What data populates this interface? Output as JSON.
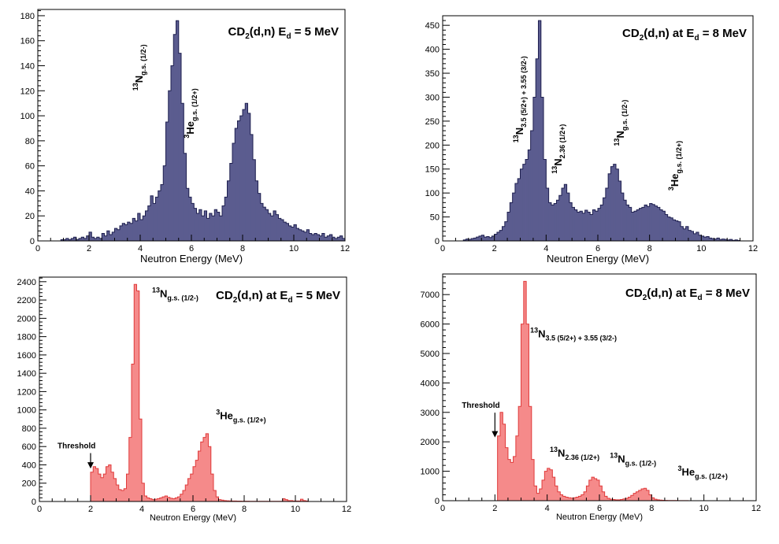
{
  "chart_data": [
    {
      "id": "tl",
      "type": "bar",
      "style": "histogram",
      "title": "CD2(d,n) E_d = 5 MeV",
      "title_parts": [
        "CD",
        "2",
        "(d,n) E",
        "d",
        " = 5 MeV"
      ],
      "xlabel": "Neutron Energy (MeV)",
      "ylabel": "",
      "xlim": [
        0,
        12
      ],
      "ylim": [
        0,
        185
      ],
      "xticks": [
        0,
        2,
        4,
        6,
        8,
        10,
        12
      ],
      "yticks": [
        0,
        20,
        40,
        60,
        80,
        100,
        120,
        140,
        160,
        180
      ],
      "fill_color": "#5b5c8f",
      "line_color": "#1f2050",
      "bin_start": 0.9,
      "bin_width": 0.1,
      "values": [
        1,
        1,
        2,
        1,
        2,
        3,
        1,
        2,
        3,
        2,
        4,
        7,
        3,
        2,
        3,
        2,
        6,
        4,
        8,
        5,
        7,
        10,
        9,
        12,
        14,
        13,
        15,
        14,
        18,
        16,
        22,
        17,
        20,
        24,
        28,
        36,
        30,
        35,
        40,
        45,
        60,
        95,
        120,
        140,
        165,
        176,
        150,
        110,
        70,
        42,
        35,
        30,
        26,
        22,
        25,
        20,
        24,
        18,
        22,
        20,
        25,
        23,
        20,
        28,
        35,
        48,
        62,
        78,
        90,
        96,
        100,
        105,
        110,
        102,
        85,
        65,
        48,
        38,
        30,
        27,
        25,
        22,
        20,
        24,
        21,
        18,
        17,
        15,
        14,
        12,
        11,
        13,
        10,
        9,
        8,
        7,
        9,
        6,
        5,
        6,
        5,
        4,
        6,
        3,
        4,
        5,
        3,
        2,
        3,
        4,
        2
      ],
      "annotations": [
        {
          "text_parts": [
            "13",
            "N",
            "g.s. (1/2-)"
          ],
          "x": 4.1,
          "y": 120,
          "rotation": -90
        },
        {
          "text_parts": [
            "3",
            "He",
            "g.s. (1/2+)"
          ],
          "x": 6.1,
          "y": 82,
          "rotation": -90
        }
      ]
    },
    {
      "id": "tr",
      "type": "bar",
      "style": "histogram",
      "title": "CD2(d,n) at E_d = 8 MeV",
      "title_parts": [
        "CD",
        "2",
        "(d,n) at E",
        "d",
        " = 8 MeV"
      ],
      "xlabel": "Neutron Energy (MeV)",
      "ylabel": "",
      "xlim": [
        0,
        12
      ],
      "ylim": [
        0,
        470
      ],
      "xticks": [
        0,
        2,
        4,
        6,
        8,
        10,
        12
      ],
      "yticks": [
        0,
        50,
        100,
        150,
        200,
        250,
        300,
        350,
        400,
        450
      ],
      "fill_color": "#5b5c8f",
      "line_color": "#1f2050",
      "bin_start": 0.8,
      "bin_width": 0.1,
      "values": [
        2,
        4,
        3,
        5,
        6,
        8,
        10,
        12,
        8,
        9,
        7,
        10,
        14,
        18,
        22,
        30,
        40,
        60,
        80,
        100,
        120,
        130,
        150,
        160,
        170,
        190,
        230,
        300,
        380,
        460,
        300,
        170,
        110,
        80,
        75,
        78,
        85,
        95,
        110,
        118,
        100,
        80,
        70,
        65,
        60,
        62,
        58,
        64,
        60,
        55,
        65,
        62,
        68,
        75,
        90,
        110,
        140,
        155,
        160,
        150,
        125,
        100,
        85,
        75,
        70,
        60,
        62,
        65,
        68,
        70,
        75,
        72,
        78,
        76,
        73,
        70,
        65,
        62,
        55,
        50,
        48,
        44,
        42,
        40,
        30,
        25,
        30,
        22,
        20,
        15,
        18,
        12,
        10,
        8,
        9,
        6,
        5,
        4,
        6,
        3,
        4,
        3,
        2,
        3,
        1,
        2,
        1
      ],
      "annotations": [
        {
          "text_parts": [
            "13",
            "N",
            "3.5 (5/2+) + 3.55 (3/2-)"
          ],
          "x": 3.1,
          "y": 205,
          "rotation": -90
        },
        {
          "text_parts": [
            "13",
            "N",
            "2.36 (1/2+)"
          ],
          "x": 4.6,
          "y": 140,
          "rotation": -90
        },
        {
          "text_parts": [
            "13",
            "N",
            "g.s. (1/2-)"
          ],
          "x": 7.0,
          "y": 198,
          "rotation": -90
        },
        {
          "text_parts": [
            "3",
            "He",
            "g.s. (1/2+)"
          ],
          "x": 9.1,
          "y": 105,
          "rotation": -90
        }
      ]
    },
    {
      "id": "bl",
      "type": "bar",
      "style": "histogram",
      "title": "CD2(d,n) at E_d = 5 MeV",
      "title_parts": [
        "CD",
        "2",
        "(d,n) at E",
        "d",
        " = 5 MeV"
      ],
      "xlabel": "Neutron Energy (MeV)",
      "ylabel": "",
      "xlim": [
        0,
        12
      ],
      "ylim": [
        0,
        2450
      ],
      "xticks": [
        0,
        2,
        4,
        6,
        8,
        10,
        12
      ],
      "yticks": [
        0,
        200,
        400,
        600,
        800,
        1000,
        1200,
        1400,
        1600,
        1800,
        2000,
        2200,
        2400
      ],
      "fill_color": "#f58a8a",
      "line_color": "#e03b3b",
      "bin_start": 2.0,
      "bin_width": 0.1,
      "values": [
        320,
        380,
        360,
        300,
        260,
        300,
        380,
        400,
        320,
        250,
        180,
        130,
        120,
        140,
        300,
        700,
        1500,
        2370,
        2300,
        900,
        200,
        60,
        40,
        30,
        20,
        25,
        30,
        40,
        50,
        60,
        45,
        35,
        30,
        40,
        50,
        80,
        120,
        180,
        250,
        300,
        380,
        450,
        550,
        650,
        700,
        740,
        600,
        300,
        120,
        50,
        20,
        15,
        10,
        8,
        6,
        5,
        5,
        4,
        4,
        3,
        3,
        3,
        2,
        2,
        2,
        2,
        2,
        2,
        2,
        2,
        2,
        2,
        2,
        2,
        2,
        30,
        20,
        10,
        10,
        5,
        5,
        5,
        25,
        10,
        5
      ],
      "annotations": [
        {
          "text_parts": [
            "13",
            "N",
            "g.s. (1/2-)"
          ],
          "x": 4.4,
          "y": 2230,
          "rotation": 0
        },
        {
          "text_parts": [
            "3",
            "He",
            "g.s. (1/2+)"
          ],
          "x": 6.9,
          "y": 900,
          "rotation": 0
        }
      ],
      "threshold": {
        "label": "Threshold",
        "x": 2.0,
        "y_text": 580,
        "y_arrow_end": 360
      }
    },
    {
      "id": "br",
      "type": "bar",
      "style": "histogram",
      "title": "CD2(d,n) at E_d = 8 MeV",
      "title_parts": [
        "CD",
        "2",
        "(d,n) at E",
        "d",
        " = 8 MeV"
      ],
      "xlabel": "Neutron Energy (MeV)",
      "ylabel": "",
      "xlim": [
        0,
        12
      ],
      "ylim": [
        0,
        7700
      ],
      "xticks": [
        0,
        2,
        4,
        6,
        8,
        10,
        12
      ],
      "yticks": [
        0,
        1000,
        2000,
        3000,
        4000,
        5000,
        6000,
        7000
      ],
      "fill_color": "#f58a8a",
      "line_color": "#e03b3b",
      "bin_start": 2.1,
      "bin_width": 0.1,
      "values": [
        2200,
        3000,
        2600,
        1800,
        1400,
        1300,
        1500,
        2200,
        3200,
        6000,
        7450,
        6000,
        3200,
        1400,
        500,
        250,
        400,
        700,
        1000,
        1100,
        1050,
        800,
        500,
        300,
        200,
        150,
        120,
        100,
        90,
        100,
        120,
        150,
        200,
        300,
        500,
        700,
        800,
        750,
        700,
        500,
        300,
        150,
        80,
        50,
        40,
        30,
        30,
        40,
        60,
        80,
        120,
        180,
        250,
        300,
        350,
        400,
        420,
        350,
        200,
        100,
        50,
        30,
        20,
        15,
        10,
        8,
        5,
        5,
        5,
        3,
        3,
        2,
        2
      ],
      "annotations": [
        {
          "text_parts": [
            "13",
            "N",
            "3.5 (5/2+) + 3.55 (3/2-)"
          ],
          "x": 3.35,
          "y": 5550,
          "rotation": 0
        },
        {
          "text_parts": [
            "13",
            "N",
            "2.36 (1/2+)"
          ],
          "x": 4.1,
          "y": 1500,
          "rotation": 0
        },
        {
          "text_parts": [
            "13",
            "N",
            "g.s. (1/2-)"
          ],
          "x": 6.4,
          "y": 1300,
          "rotation": 0
        },
        {
          "text_parts": [
            "3",
            "He",
            "g.s. (1/2+)"
          ],
          "x": 9.0,
          "y": 850,
          "rotation": 0
        }
      ],
      "threshold": {
        "label": "Threshold",
        "x": 2.0,
        "y_text": 3150,
        "y_arrow_end": 2150
      }
    }
  ]
}
